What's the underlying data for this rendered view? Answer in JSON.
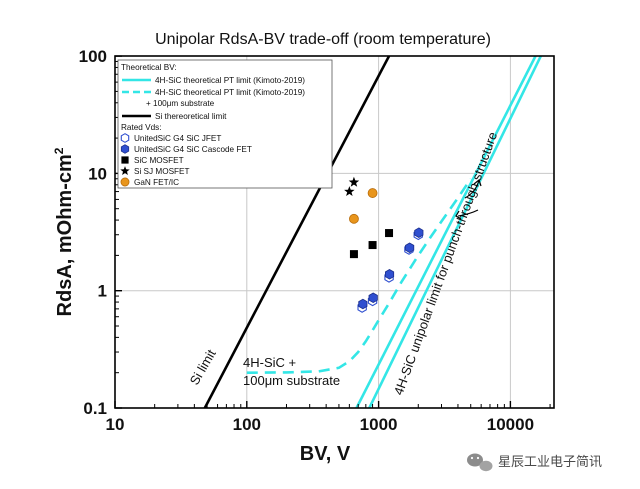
{
  "chart_data": {
    "type": "scatter",
    "title": "Unipolar RdsA-BV trade-off (room temperature)",
    "xlabel": "BV, V",
    "ylabel": "RdsA, mOhm-cm²",
    "ylabel_parts": [
      "RdsA, mOhm-cm",
      "2"
    ],
    "x_scale": "log",
    "y_scale": "log",
    "xlim": [
      10,
      20000
    ],
    "ylim": [
      0.1,
      100
    ],
    "x_ticks": [
      10,
      100,
      1000,
      10000
    ],
    "x_tick_labels": [
      "10",
      "100",
      "1000",
      "10000"
    ],
    "y_ticks": [
      0.1,
      1,
      10,
      100
    ],
    "y_tick_labels": [
      "0.1",
      "1",
      "10",
      "100"
    ],
    "grid": true,
    "legend_position": "top-left",
    "legend": {
      "header_theory": "Theoretical BV:",
      "pt_limit": "4H-SiC theoretical PT limit (Kimoto-2019)",
      "pt_substrate": "4H-SiC theoretical PT limit (Kimoto-2019)",
      "pt_substrate_2": "+ 100μm substrate",
      "si_limit": "Si thereoretical limit",
      "header_rated": "Rated Vds:",
      "jfet": "UnitedSiC G4 SiC JFET",
      "cascode": "UnitedSiC G4 SiC Cascode FET",
      "mosfet": "SiC MOSFET",
      "sj": "Si SJ MOSFET",
      "gan": "GaN FET/IC"
    },
    "colors": {
      "sic_limit": "#33e6e6",
      "si_limit": "#000000",
      "cascode": "#2f4fd0",
      "gan": "#e8951c",
      "grid": "#c8c8c8"
    },
    "lines": [
      {
        "legend_key": "si_limit",
        "style": "solid",
        "points": [
          [
            48,
            0.1
          ],
          [
            1200,
            100
          ]
        ]
      },
      {
        "legend_key": "pt_limit",
        "style": "solid",
        "points": [
          [
            680,
            0.1
          ],
          [
            15500,
            100
          ]
        ]
      },
      {
        "legend_key": "pt_limit",
        "style": "solid",
        "points": [
          [
            850,
            0.1
          ],
          [
            17000,
            100
          ]
        ]
      },
      {
        "legend_key": "pt_substrate",
        "style": "dashed",
        "points": [
          [
            100,
            0.2
          ],
          [
            200,
            0.201
          ],
          [
            350,
            0.205
          ],
          [
            500,
            0.22
          ],
          [
            600,
            0.25
          ],
          [
            700,
            0.3
          ],
          [
            800,
            0.37
          ],
          [
            900,
            0.46
          ],
          [
            1000,
            0.56
          ],
          [
            1200,
            0.78
          ],
          [
            1500,
            1.2
          ],
          [
            2000,
            2.0
          ],
          [
            2500,
            2.9
          ],
          [
            3000,
            3.9
          ],
          [
            4000,
            6.2
          ],
          [
            5000,
            9.0
          ]
        ]
      }
    ],
    "series": [
      {
        "legend_key": "jfet",
        "marker": "hexagon-open",
        "points": [
          [
            750,
            0.72
          ],
          [
            900,
            0.82
          ],
          [
            1200,
            1.3
          ],
          [
            1700,
            2.25
          ],
          [
            2000,
            3.0
          ]
        ]
      },
      {
        "legend_key": "cascode",
        "marker": "hexagon-filled",
        "points": [
          [
            760,
            0.77
          ],
          [
            910,
            0.87
          ],
          [
            1210,
            1.38
          ],
          [
            1720,
            2.32
          ],
          [
            2020,
            3.12
          ]
        ]
      },
      {
        "legend_key": "mosfet",
        "marker": "square",
        "points": [
          [
            650,
            2.05
          ],
          [
            900,
            2.45
          ],
          [
            1200,
            3.1
          ]
        ]
      },
      {
        "legend_key": "sj",
        "marker": "star",
        "points": [
          [
            600,
            7.0
          ],
          [
            650,
            8.4
          ]
        ]
      },
      {
        "legend_key": "gan",
        "marker": "circle",
        "points": [
          [
            650,
            4.1
          ],
          [
            900,
            6.8
          ]
        ]
      }
    ],
    "annotations": {
      "si_label": "Si limit",
      "substrate_label_1": "4H-SiC +",
      "substrate_label_2": "100μm substrate",
      "unipolar_label": "4H-SiC unipolar limit for punch-through  structure"
    }
  },
  "watermark": {
    "icon": "wechat-icon",
    "text": "星辰工业电子简讯"
  }
}
